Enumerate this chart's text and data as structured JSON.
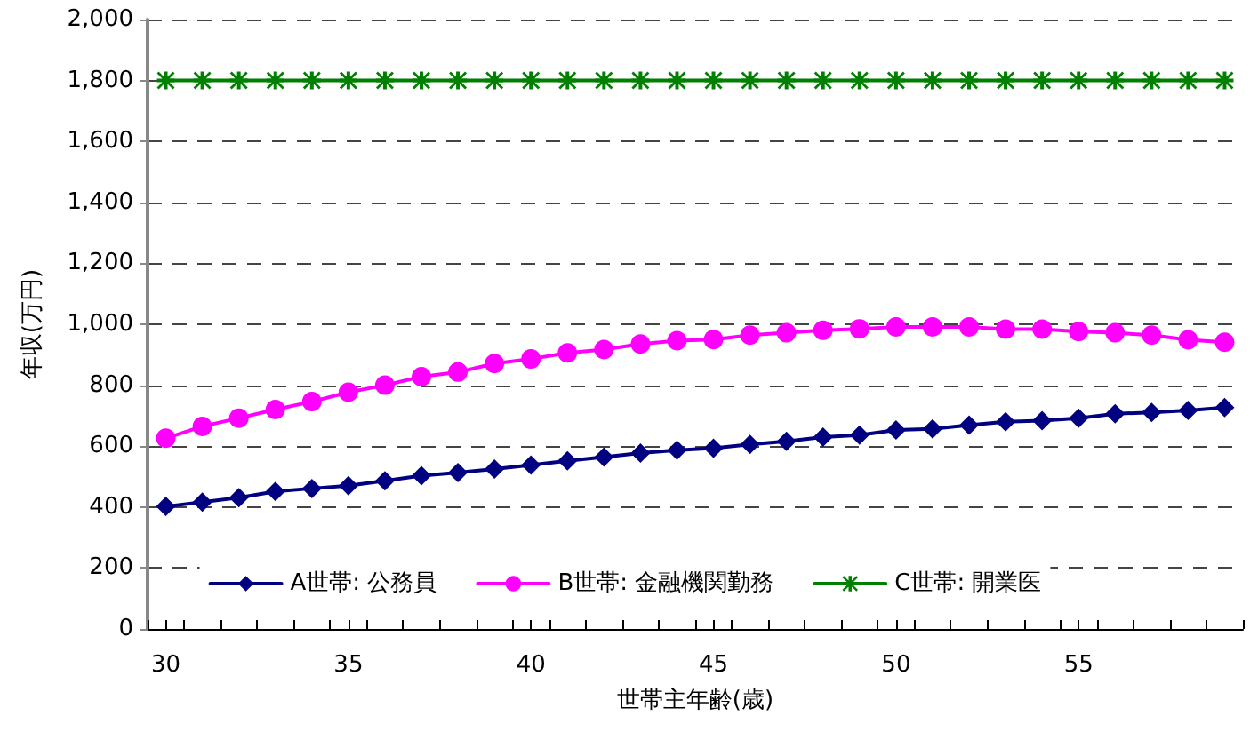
{
  "chart_data": {
    "type": "line",
    "xlabel": "世帯主年齢(歳)",
    "ylabel": "年収(万円)",
    "x": [
      30,
      31,
      32,
      33,
      34,
      35,
      36,
      37,
      38,
      39,
      40,
      41,
      42,
      43,
      44,
      45,
      46,
      47,
      48,
      49,
      50,
      51,
      52,
      53,
      54,
      55,
      56,
      57,
      58,
      59
    ],
    "xlim": [
      29.5,
      59.5
    ],
    "xticks": [
      {
        "value": 29.5,
        "label": null
      },
      {
        "value": 30,
        "label": "30"
      },
      {
        "value": 30.5,
        "label": null
      },
      {
        "value": 31.5,
        "label": null
      },
      {
        "value": 32.5,
        "label": null
      },
      {
        "value": 33.5,
        "label": null
      },
      {
        "value": 34.5,
        "label": null
      },
      {
        "value": 35,
        "label": "35"
      },
      {
        "value": 35.5,
        "label": null
      },
      {
        "value": 36.5,
        "label": null
      },
      {
        "value": 37.5,
        "label": null
      },
      {
        "value": 38.5,
        "label": null
      },
      {
        "value": 39.5,
        "label": null
      },
      {
        "value": 40,
        "label": "40"
      },
      {
        "value": 40.5,
        "label": null
      },
      {
        "value": 41.5,
        "label": null
      },
      {
        "value": 42.5,
        "label": null
      },
      {
        "value": 43.5,
        "label": null
      },
      {
        "value": 44.5,
        "label": null
      },
      {
        "value": 45,
        "label": "45"
      },
      {
        "value": 45.5,
        "label": null
      },
      {
        "value": 46.5,
        "label": null
      },
      {
        "value": 47.5,
        "label": null
      },
      {
        "value": 48.5,
        "label": null
      },
      {
        "value": 49.5,
        "label": null
      },
      {
        "value": 50,
        "label": "50"
      },
      {
        "value": 50.5,
        "label": null
      },
      {
        "value": 51.5,
        "label": null
      },
      {
        "value": 52.5,
        "label": null
      },
      {
        "value": 53.5,
        "label": null
      },
      {
        "value": 54.5,
        "label": null
      },
      {
        "value": 55,
        "label": "55"
      },
      {
        "value": 55.5,
        "label": null
      },
      {
        "value": 56.5,
        "label": null
      },
      {
        "value": 57.5,
        "label": null
      },
      {
        "value": 58.5,
        "label": null
      },
      {
        "value": 59.5,
        "label": null
      }
    ],
    "ylim": [
      0,
      2000
    ],
    "yticks": [
      0,
      {
        "value": 200,
        "label": "200"
      },
      {
        "value": 400,
        "label": "400"
      },
      {
        "value": 600,
        "label": "600"
      },
      {
        "value": 800,
        "label": "800"
      },
      {
        "value": 1000,
        "label": "1,000"
      },
      {
        "value": 1200,
        "label": "1,200"
      },
      {
        "value": 1400,
        "label": "1,400"
      },
      {
        "value": 1600,
        "label": "1,600"
      },
      {
        "value": 1800,
        "label": "1,800"
      },
      {
        "value": 2000,
        "label": "2,000"
      }
    ],
    "grid": "y",
    "legend": "bottom",
    "line_style": "solid",
    "series": [
      {
        "name": "A世帯: 公務員",
        "color": "#000080",
        "marker": "diamond",
        "values": [
          402,
          416,
          431,
          451,
          461,
          470,
          486,
          503,
          513,
          525,
          538,
          552,
          564,
          577,
          587,
          593,
          606,
          616,
          630,
          636,
          653,
          657,
          669,
          680,
          684,
          692,
          706,
          711,
          717,
          727
        ]
      },
      {
        "name": "B世帯: 金融機関勤務",
        "color": "#ff00ff",
        "marker": "circle",
        "values": [
          626,
          665,
          692,
          720,
          746,
          777,
          800,
          828,
          843,
          871,
          886,
          906,
          917,
          935,
          946,
          950,
          964,
          972,
          980,
          985,
          991,
          991,
          991,
          984,
          984,
          976,
          972,
          964,
          949,
          941
        ]
      },
      {
        "name": "C世帯: 開業医",
        "color": "#008000",
        "marker": "star",
        "values": [
          1800,
          1800,
          1800,
          1800,
          1800,
          1800,
          1800,
          1800,
          1800,
          1800,
          1800,
          1800,
          1800,
          1800,
          1800,
          1800,
          1800,
          1800,
          1800,
          1800,
          1800,
          1800,
          1800,
          1800,
          1800,
          1800,
          1800,
          1800,
          1800,
          1800
        ]
      }
    ]
  }
}
